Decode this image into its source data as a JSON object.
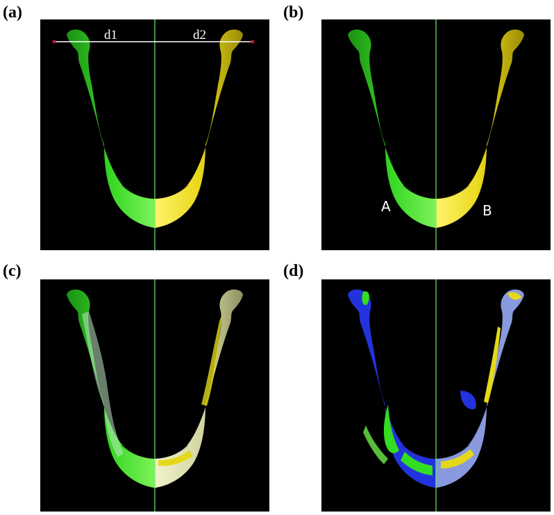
{
  "panels": [
    {
      "label": "(a)",
      "annotations": {
        "left_distance": "d1",
        "right_distance": "d2"
      }
    },
    {
      "label": "(b)",
      "annotations": {
        "left_region": "A",
        "right_region": "B"
      }
    },
    {
      "label": "(c)"
    },
    {
      "label": "(d)"
    }
  ],
  "colors": {
    "background": "#000000",
    "left_half": "#33dd22",
    "right_half": "#e5d81a",
    "midline": "#66ee66",
    "mirrored_overlay": "#d8dcae",
    "deviation_map": "#2233dd",
    "deviation_light": "#8899dd"
  }
}
